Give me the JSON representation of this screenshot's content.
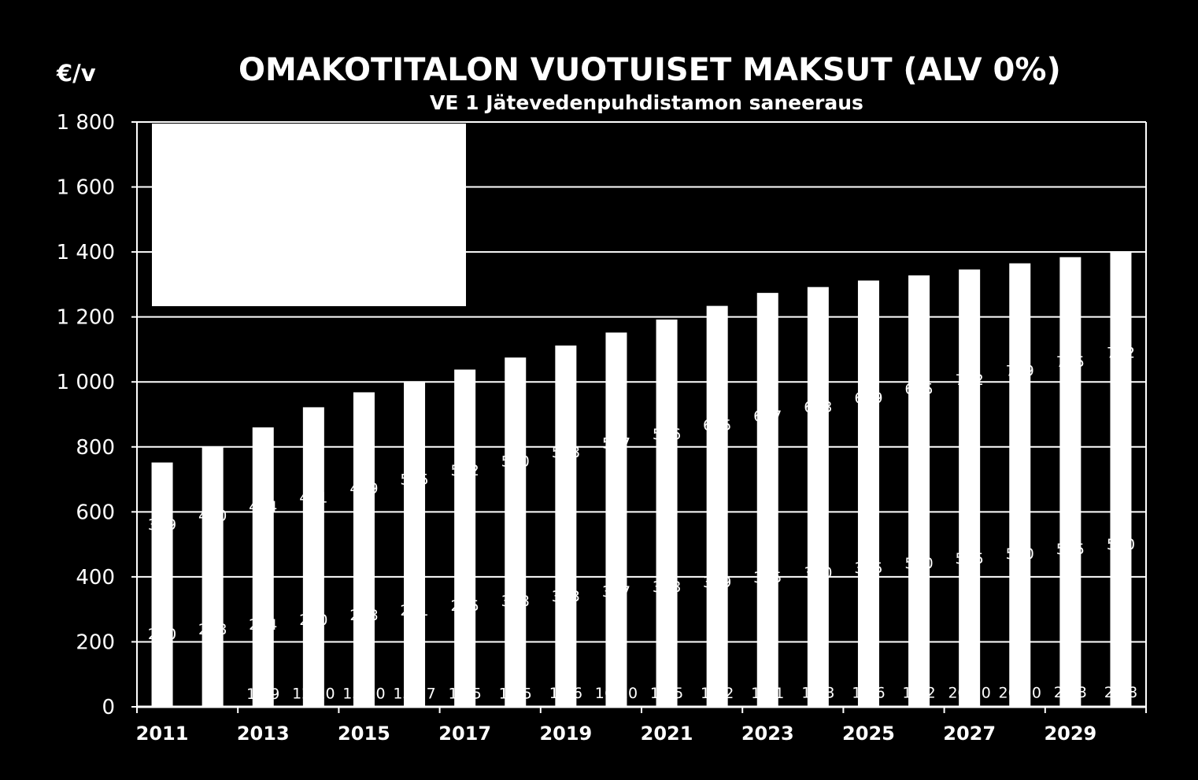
{
  "chart_data": {
    "type": "bar",
    "title": "OMAKOTITALON VUOTUISET MAKSUT (ALV 0%)",
    "subtitle": "VE 1 Jätevedenpuhdistamon saneeraus",
    "ylabel": "€/v",
    "ylim": [
      0,
      1800
    ],
    "yticks": [
      0,
      200,
      400,
      600,
      800,
      1000,
      1200,
      1400,
      1600,
      1800
    ],
    "ytick_labels": [
      "0",
      "200",
      "400",
      "600",
      "800",
      "1 000",
      "1 200",
      "1 400",
      "1 600",
      "1 800"
    ],
    "grid": true,
    "legend": "top-left",
    "categories": [
      "2011",
      "2012",
      "2013",
      "2014",
      "2015",
      "2016",
      "2017",
      "2018",
      "2019",
      "2020",
      "2021",
      "2022",
      "2023",
      "2024",
      "2025",
      "2026",
      "2027",
      "2028",
      "2029",
      "2030"
    ],
    "xtick_labels": [
      "2011",
      "2013",
      "2015",
      "2017",
      "2019",
      "2021",
      "2023",
      "2025",
      "2027",
      "2029"
    ],
    "values": [
      752,
      800,
      860,
      922,
      968,
      1002,
      1038,
      1075,
      1112,
      1152,
      1192,
      1234,
      1274,
      1292,
      1312,
      1328,
      1346,
      1365,
      1384,
      1402
    ],
    "data_labels": {
      "bottom": [
        "83",
        "84",
        "11,9",
        "12,10",
        "13,10",
        "13,17",
        "14,5",
        "14,5",
        "15,6",
        "16,10",
        "16,5",
        "16,2",
        "17,1",
        "18,3",
        "18,6",
        "19,2",
        "20,10",
        "20,10",
        "21,3",
        "22,8"
      ],
      "middle_low": [
        "200",
        "208",
        "234",
        "250",
        "268",
        "281",
        "295",
        "308",
        "323",
        "337",
        "348",
        "359",
        "375",
        "380",
        "395",
        "500",
        "515",
        "530",
        "545",
        "560"
      ],
      "middle_high": [
        "389",
        "410",
        "444",
        "471",
        "489",
        "505",
        "522",
        "540",
        "558",
        "577",
        "596",
        "615",
        "637",
        "653",
        "669",
        "685",
        "702",
        "719",
        "735",
        "752"
      ]
    },
    "colors": {
      "background": "#000000",
      "bars": "#ffffff",
      "grid": "#ffffff",
      "text": "#ffffff",
      "legend_box": "#ffffff"
    }
  }
}
